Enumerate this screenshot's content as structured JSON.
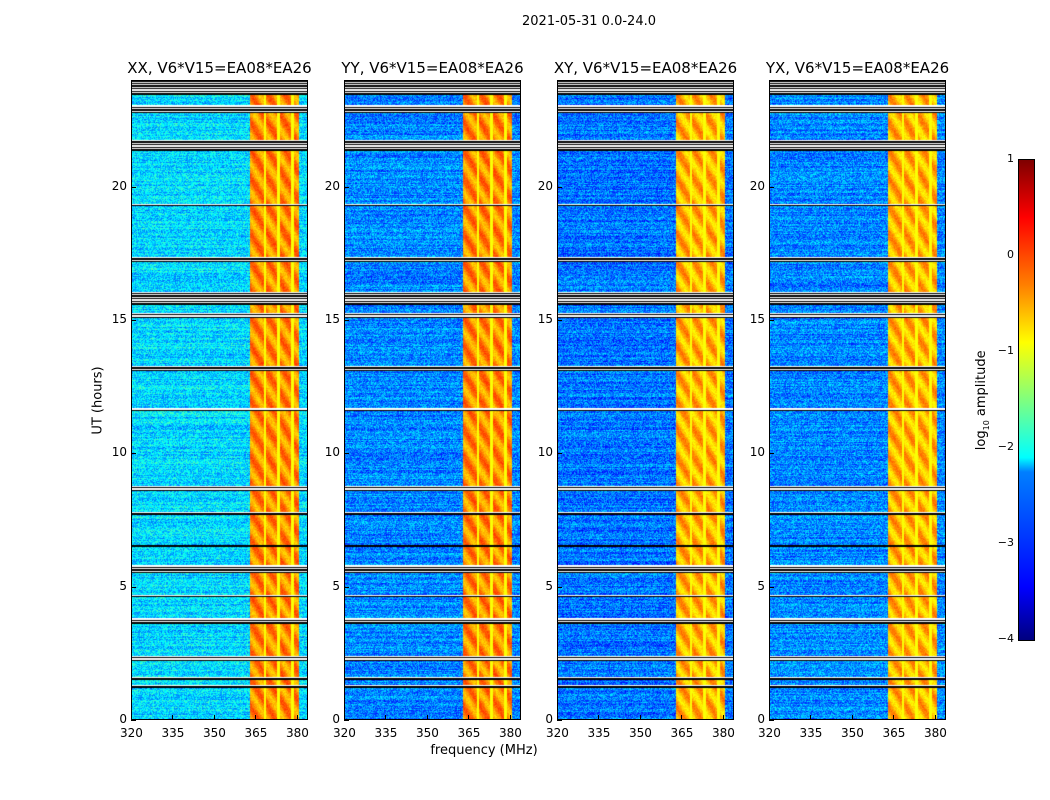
{
  "suptitle": "2021-05-31 0.0-24.0",
  "xlabel": "frequency (MHz)",
  "ylabel": "UT (hours)",
  "colorbar": {
    "label_prefix": "log",
    "label_sub": "10",
    "label_suffix": " amplitude",
    "ticks": [
      "1",
      "0",
      "−1",
      "−2",
      "−3",
      "−4"
    ],
    "range": [
      -4,
      1
    ],
    "colormap": "jet"
  },
  "chart_data": {
    "type": "heatmap",
    "title": "2021-05-31 0.0-24.0",
    "xlabel": "frequency (MHz)",
    "ylabel": "UT (hours)",
    "xlim": [
      320,
      384
    ],
    "ylim": [
      0,
      24
    ],
    "xticks": [
      "320",
      "335",
      "350",
      "365",
      "380"
    ],
    "xtick_values": [
      320,
      335,
      350,
      365,
      380
    ],
    "yticks": [
      "0",
      "5",
      "10",
      "15",
      "20"
    ],
    "ytick_values": [
      0,
      5,
      10,
      15,
      20
    ],
    "value_label": "log10 amplitude",
    "value_range": [
      -4,
      1
    ],
    "panels": [
      {
        "title": "XX, V6*V15=EA08*EA26",
        "background_level": -2.3,
        "band_level": -0.3
      },
      {
        "title": "YY, V6*V15=EA08*EA26",
        "background_level": -2.7,
        "band_level": -0.3
      },
      {
        "title": "XY, V6*V15=EA08*EA26",
        "background_level": -2.8,
        "band_level": -0.5
      },
      {
        "title": "YX, V6*V15=EA08*EA26",
        "background_level": -2.7,
        "band_level": -0.5
      }
    ],
    "high_amplitude_band_mhz": [
      363,
      381
    ],
    "band_gaps_mhz": [
      368.5,
      373.5,
      378.5
    ],
    "flagged_ut_ranges": [
      [
        1.2,
        1.3
      ],
      [
        1.5,
        1.6
      ],
      [
        2.2,
        2.4
      ],
      [
        3.6,
        3.8
      ],
      [
        4.6,
        4.7
      ],
      [
        5.5,
        5.8
      ],
      [
        6.5,
        6.55
      ],
      [
        7.7,
        7.8
      ],
      [
        8.6,
        8.8
      ],
      [
        11.6,
        11.7
      ],
      [
        13.1,
        13.3
      ],
      [
        15.1,
        15.3
      ],
      [
        15.6,
        16.1
      ],
      [
        17.2,
        17.4
      ],
      [
        19.3,
        19.4
      ],
      [
        21.4,
        21.8
      ],
      [
        22.8,
        23.1
      ],
      [
        23.5,
        24
      ]
    ]
  }
}
